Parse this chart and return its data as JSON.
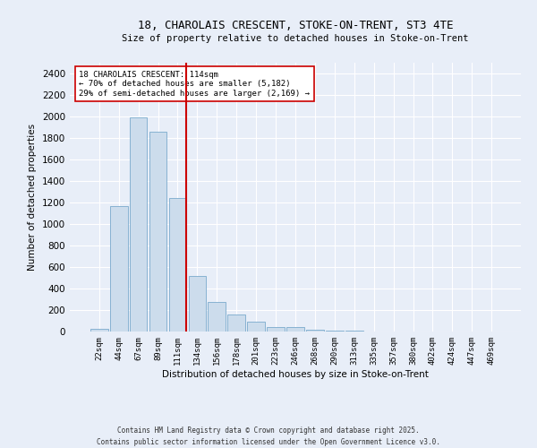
{
  "title_line1": "18, CHAROLAIS CRESCENT, STOKE-ON-TRENT, ST3 4TE",
  "title_line2": "Size of property relative to detached houses in Stoke-on-Trent",
  "xlabel": "Distribution of detached houses by size in Stoke-on-Trent",
  "ylabel": "Number of detached properties",
  "categories": [
    "22sqm",
    "44sqm",
    "67sqm",
    "89sqm",
    "111sqm",
    "134sqm",
    "156sqm",
    "178sqm",
    "201sqm",
    "223sqm",
    "246sqm",
    "268sqm",
    "290sqm",
    "313sqm",
    "335sqm",
    "357sqm",
    "380sqm",
    "402sqm",
    "424sqm",
    "447sqm",
    "469sqm"
  ],
  "values": [
    25,
    1170,
    1990,
    1860,
    1240,
    520,
    275,
    155,
    90,
    45,
    38,
    20,
    10,
    5,
    3,
    2,
    2,
    1,
    1,
    1,
    1
  ],
  "bar_color": "#ccdcec",
  "bar_edge_color": "#7aaacc",
  "vline_x_index": 4,
  "vline_color": "#cc0000",
  "annotation_text": "18 CHAROLAIS CRESCENT: 114sqm\n← 70% of detached houses are smaller (5,182)\n29% of semi-detached houses are larger (2,169) →",
  "annotation_box_color": "#ffffff",
  "annotation_box_edge": "#cc0000",
  "background_color": "#e8eef8",
  "grid_color": "#ffffff",
  "footer_line1": "Contains HM Land Registry data © Crown copyright and database right 2025.",
  "footer_line2": "Contains public sector information licensed under the Open Government Licence v3.0.",
  "ylim": [
    0,
    2500
  ],
  "yticks": [
    0,
    200,
    400,
    600,
    800,
    1000,
    1200,
    1400,
    1600,
    1800,
    2000,
    2200,
    2400
  ]
}
